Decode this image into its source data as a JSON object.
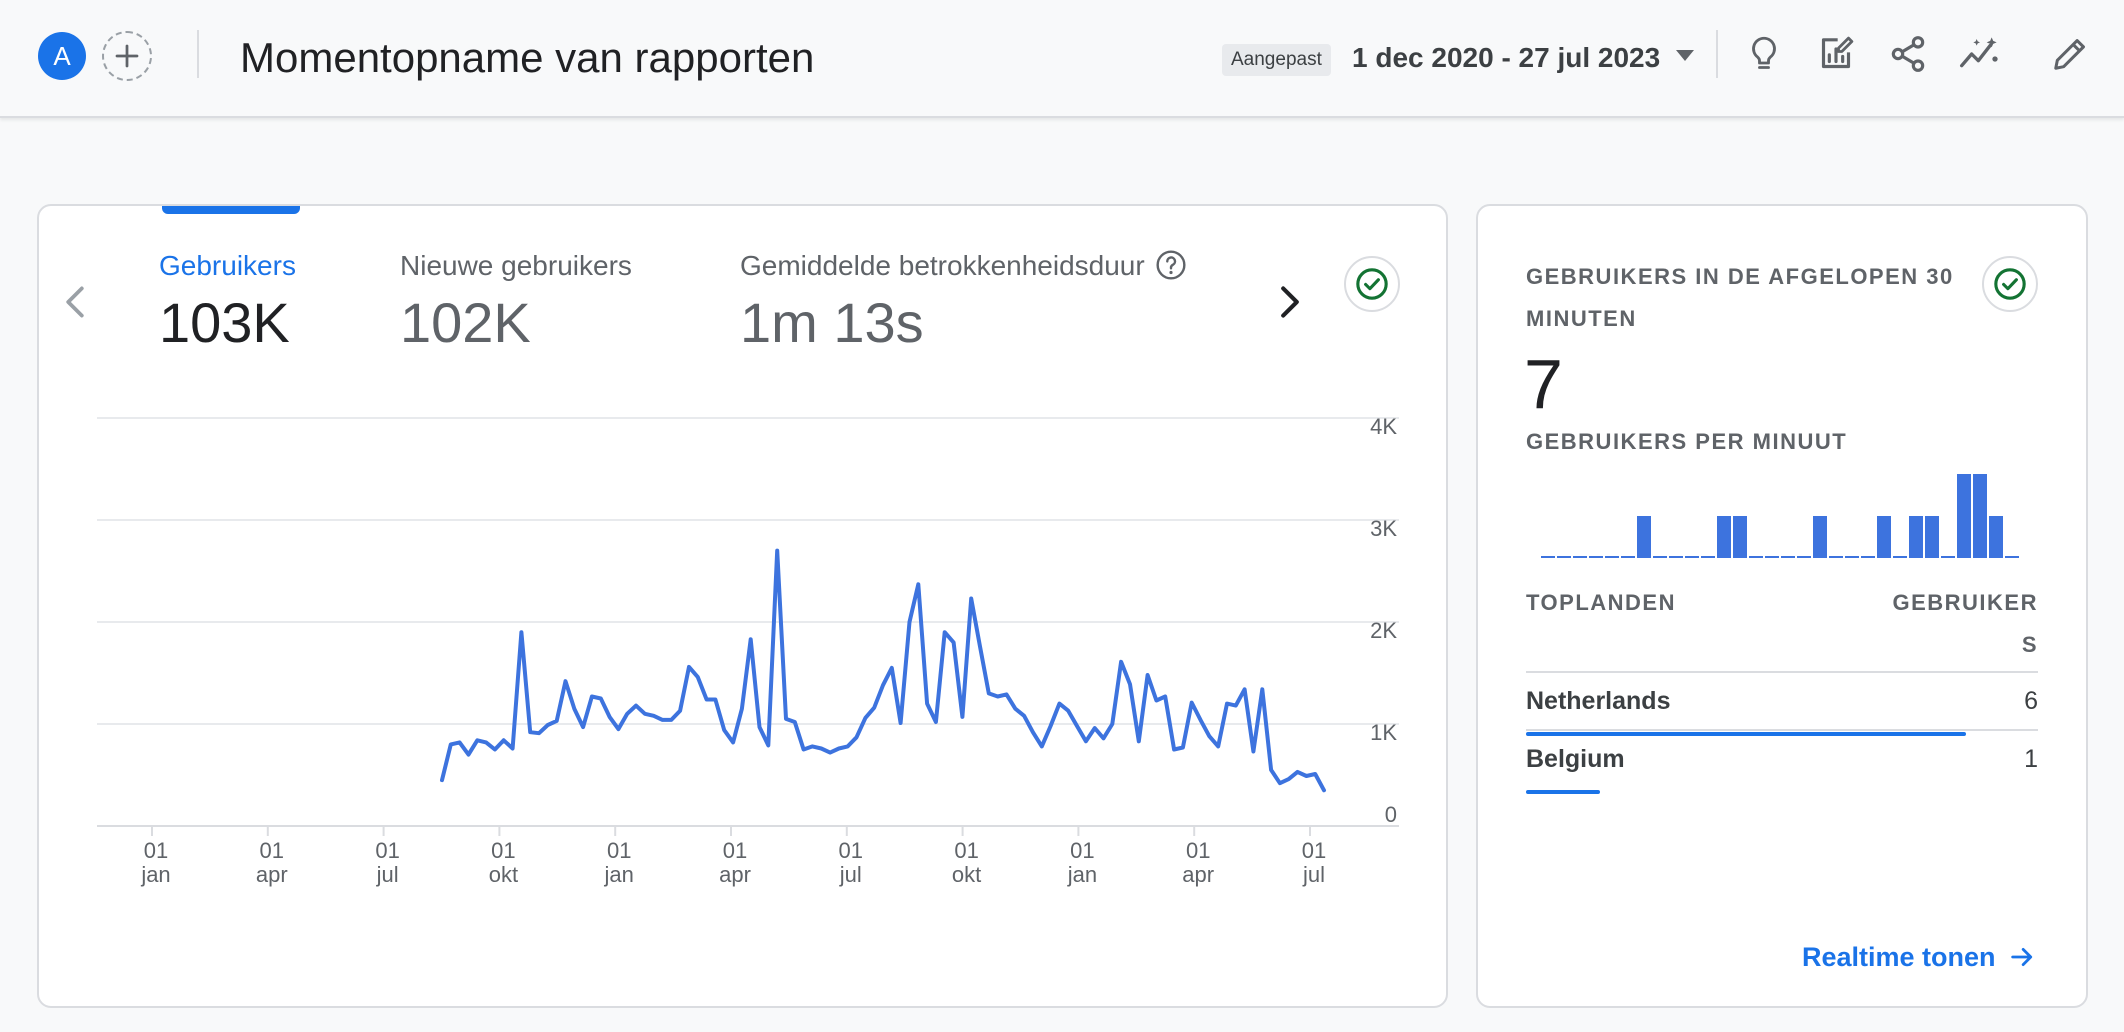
{
  "header": {
    "avatar_letter": "A",
    "title": "Momentopname van rapporten",
    "date_range_chip": "Aangepast",
    "date_range": "1 dec 2020 - 27 jul 2023",
    "icons": [
      "lightbulb-icon",
      "edit-report-icon",
      "share-icon",
      "insights-icon",
      "pencil-icon"
    ]
  },
  "main_card": {
    "metrics": [
      {
        "label": "Gebruikers",
        "value": "103K"
      },
      {
        "label": "Nieuwe gebruikers",
        "value": "102K"
      },
      {
        "label": "Gemiddelde betrokkenheidsduur",
        "value": "1m 13s"
      }
    ],
    "status": "check-circle-icon",
    "accent_color": "#1a73e8"
  },
  "chart_data": {
    "type": "line",
    "series": [
      {
        "values": [
          450,
          800,
          820,
          700,
          840,
          820,
          750,
          840,
          760,
          1900,
          920,
          910,
          990,
          1030,
          1420,
          1150,
          970,
          1270,
          1250,
          1070,
          950,
          1100,
          1180,
          1100,
          1080,
          1040,
          1040,
          1130,
          1560,
          1460,
          1240,
          1240,
          940,
          820,
          1150,
          1830,
          970,
          790,
          2700,
          1050,
          1020,
          750,
          780,
          760,
          720,
          760,
          780,
          870,
          1060,
          1160,
          1380,
          1550,
          1010,
          2000,
          2370,
          1200,
          1020,
          1900,
          1800,
          1070,
          2230,
          1760,
          1300,
          1270,
          1290,
          1150,
          1080,
          920,
          780,
          980,
          1200,
          1130,
          980,
          830,
          960,
          860,
          1000,
          1610,
          1390,
          830,
          1480,
          1230,
          1270,
          750,
          770,
          1210,
          1040,
          880,
          780,
          1200,
          1180,
          1340,
          730,
          1340,
          550,
          420,
          460,
          530,
          490,
          510,
          350
        ]
      }
    ],
    "x_tick_labels": [
      [
        "01",
        "jan"
      ],
      [
        "01",
        "apr"
      ],
      [
        "01",
        "jul"
      ],
      [
        "01",
        "okt"
      ],
      [
        "01",
        "jan"
      ],
      [
        "01",
        "apr"
      ],
      [
        "01",
        "jul"
      ],
      [
        "01",
        "okt"
      ],
      [
        "01",
        "jan"
      ],
      [
        "01",
        "apr"
      ],
      [
        "01",
        "jul"
      ]
    ],
    "y_tick_labels": [
      "4K",
      "3K",
      "2K",
      "1K",
      "0"
    ],
    "ylim": [
      0,
      4000
    ],
    "grid": true,
    "y_axis_position": "right",
    "line_color": "#3d73de"
  },
  "side_card": {
    "title": "GEBRUIKERS IN DE AFGELOPEN 30 MINUTEN",
    "value": "7",
    "sub_title": "GEBRUIKERS PER MINUUT",
    "status": "check-circle-icon",
    "per_minute": [
      0,
      0,
      0,
      0,
      0,
      0,
      1,
      0,
      0,
      0,
      0,
      1,
      1,
      0,
      0,
      0,
      0,
      1,
      0,
      0,
      0,
      1,
      0,
      1,
      1,
      0,
      2,
      2,
      1,
      0
    ],
    "table_header": {
      "left": "TOPLANDEN",
      "right": "GEBRUIKERS"
    },
    "countries": [
      {
        "name": "Netherlands",
        "value": "6",
        "count": 6
      },
      {
        "name": "Belgium",
        "value": "1",
        "count": 1
      }
    ],
    "link_label": "Realtime tonen"
  }
}
